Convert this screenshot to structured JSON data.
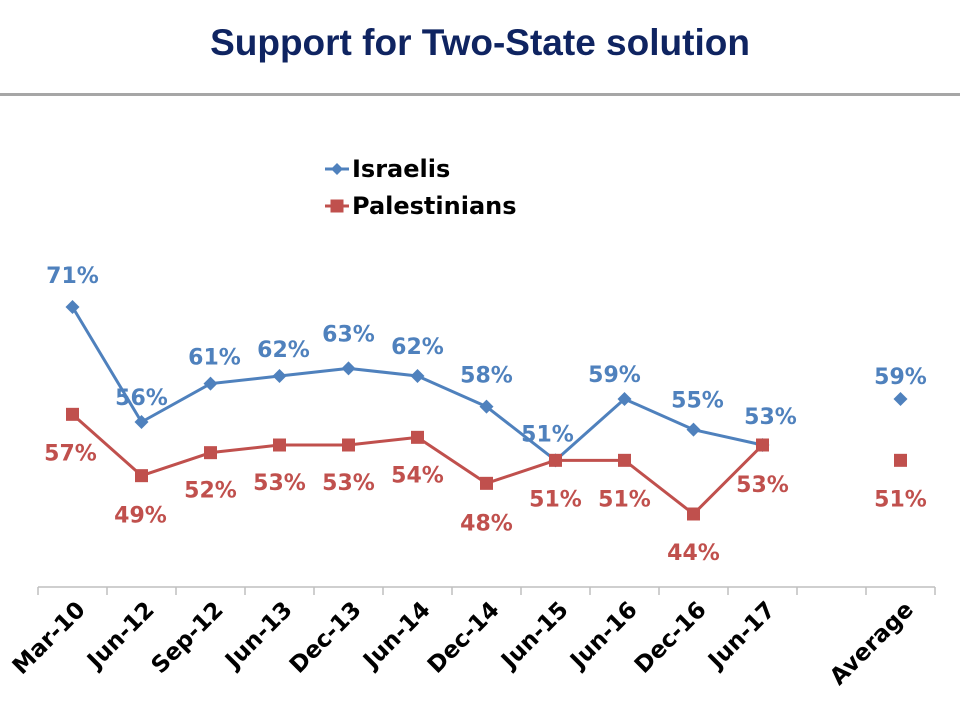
{
  "chart_data": {
    "type": "line",
    "title": "Support for Two-State solution",
    "categories": [
      "Mar-10",
      "Jun-12",
      "Sep-12",
      "Jun-13",
      "Dec-13",
      "Jun-14",
      "Dec-14",
      "Jun-15",
      "Jun-16",
      "Dec-16",
      "Jun-17",
      "",
      "Average"
    ],
    "series": [
      {
        "name": "Israelis",
        "color": "#4f81bd",
        "marker": "diamond",
        "values": [
          71,
          56,
          61,
          62,
          63,
          62,
          58,
          51,
          59,
          55,
          53,
          null,
          59
        ],
        "labels": [
          "71%",
          "56%",
          "61%",
          "62%",
          "63%",
          "62%",
          "58%",
          "51%",
          "59%",
          "55%",
          "53%",
          "",
          "59%"
        ]
      },
      {
        "name": "Palestinians",
        "color": "#c0504d",
        "marker": "square",
        "values": [
          57,
          49,
          52,
          53,
          53,
          54,
          48,
          51,
          51,
          44,
          53,
          null,
          51
        ],
        "labels": [
          "57%",
          "49%",
          "52%",
          "53%",
          "53%",
          "54%",
          "48%",
          "51%",
          "51%",
          "44%",
          "53%",
          "",
          "51%"
        ]
      }
    ],
    "connected_points": 11,
    "ylim": [
      34,
      100
    ],
    "xlabel": "",
    "ylabel": "",
    "grid": false,
    "legend_position": "top-center"
  }
}
